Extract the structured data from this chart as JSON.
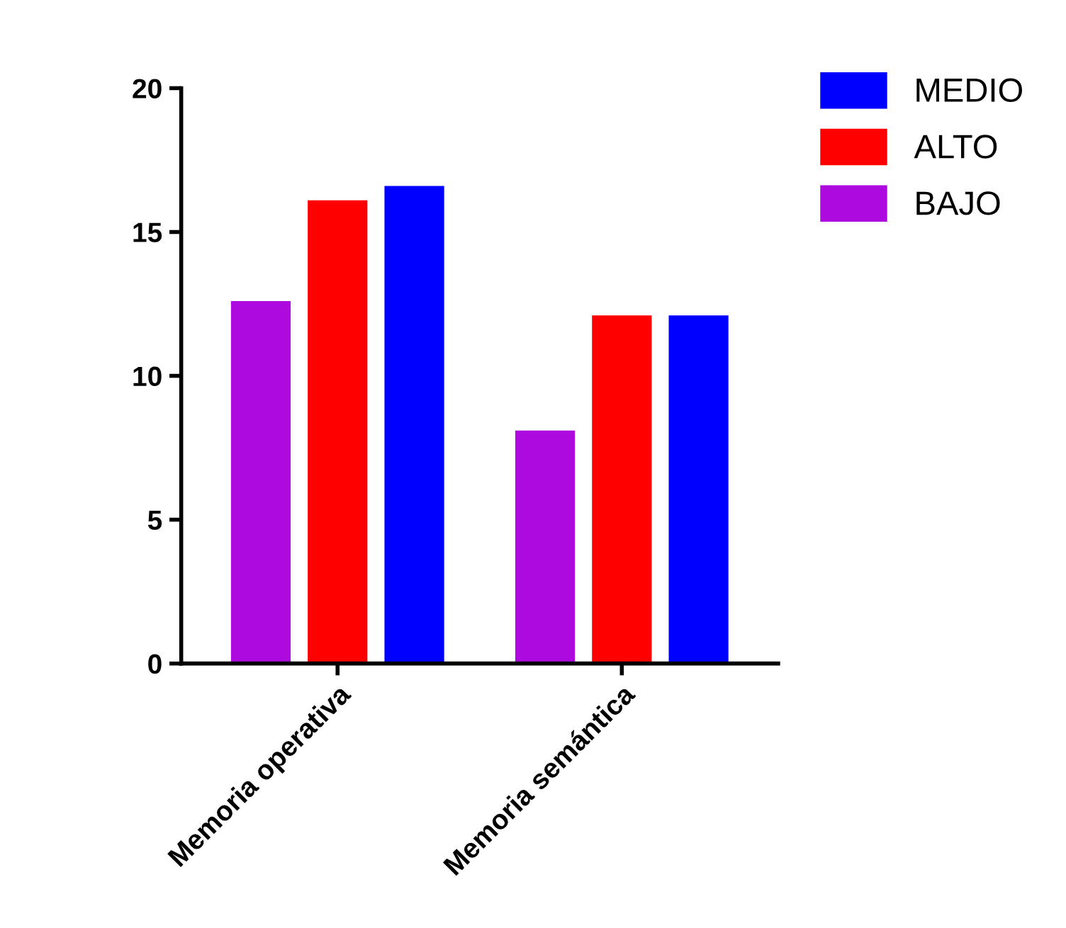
{
  "chart_data": {
    "type": "bar",
    "categories": [
      "Memoria operativa",
      "Memoria semántica"
    ],
    "series": [
      {
        "name": "BAJO",
        "color": "#ad0ae0",
        "values": [
          12.6,
          8.1
        ]
      },
      {
        "name": "ALTO",
        "color": "#ff0000",
        "values": [
          16.1,
          12.1
        ]
      },
      {
        "name": "MEDIO",
        "color": "#0000ff",
        "values": [
          16.6,
          12.1
        ]
      }
    ],
    "ylim": [
      0,
      20
    ],
    "yticks": [
      0,
      5,
      10,
      15,
      20
    ],
    "grid": false,
    "legend": "top right"
  }
}
